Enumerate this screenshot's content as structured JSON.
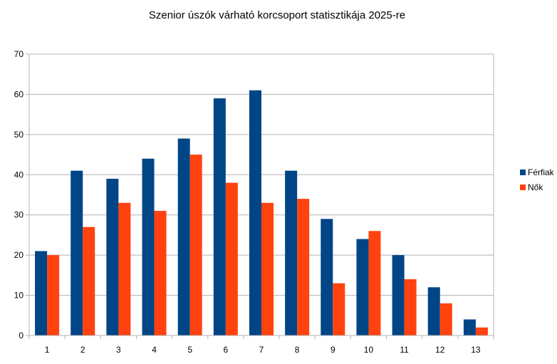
{
  "chart_data": {
    "type": "bar",
    "title": "Szenior úszók várható korcsoport statisztikája 2025-re",
    "categories": [
      "1",
      "2",
      "3",
      "4",
      "5",
      "6",
      "7",
      "8",
      "9",
      "10",
      "11",
      "12",
      "13"
    ],
    "series": [
      {
        "name": "Férfiak",
        "color": "#004586",
        "values": [
          21,
          41,
          39,
          44,
          49,
          59,
          61,
          41,
          29,
          24,
          20,
          12,
          4
        ]
      },
      {
        "name": "Nők",
        "color": "#ff420e",
        "values": [
          20,
          27,
          33,
          31,
          45,
          38,
          33,
          34,
          13,
          26,
          14,
          8,
          2
        ]
      }
    ],
    "ylim": [
      0,
      70
    ],
    "yticks": [
      "0",
      "10",
      "20",
      "30",
      "40",
      "50",
      "60",
      "70"
    ],
    "grid": true,
    "legend": "right"
  }
}
